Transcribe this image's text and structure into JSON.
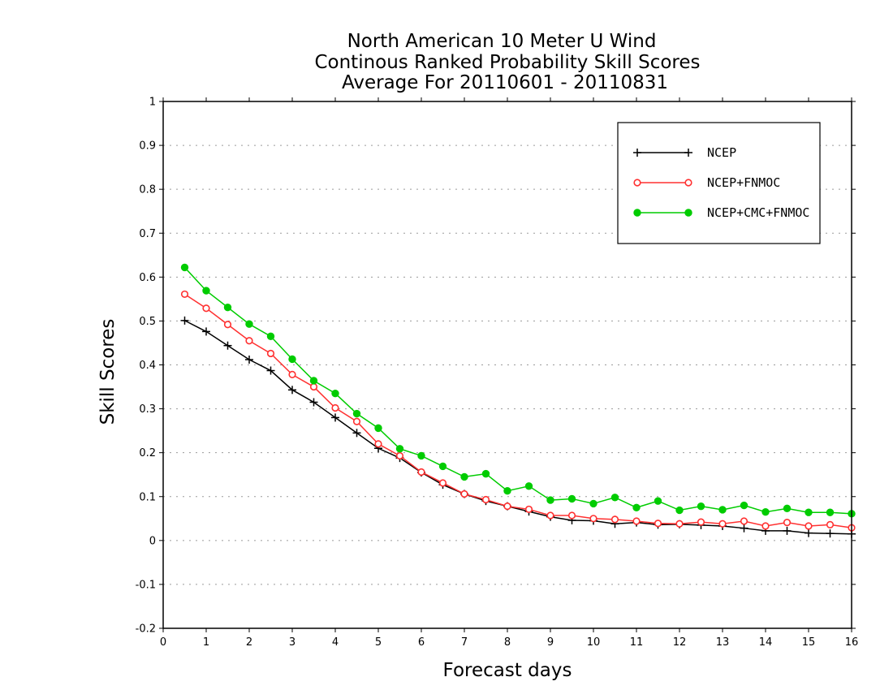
{
  "chart_data": {
    "type": "line",
    "title": [
      "North American 10 Meter U Wind",
      "Continous Ranked Probability Skill Scores",
      "Average For 20110601 - 20110831"
    ],
    "xlabel": "Forecast days",
    "ylabel": "Skill Scores",
    "xlim": [
      0,
      16
    ],
    "ylim": [
      -0.2,
      1
    ],
    "xticks": [
      0,
      1,
      2,
      3,
      4,
      5,
      6,
      7,
      8,
      9,
      10,
      11,
      12,
      13,
      14,
      15,
      16
    ],
    "xtick_labels": [
      "0",
      "1",
      "2",
      "3",
      "4",
      "5",
      "6",
      "7",
      "8",
      "9",
      "10",
      "11",
      "12",
      "13",
      "14",
      "15",
      "16"
    ],
    "yticks": [
      -0.2,
      -0.1,
      0,
      0.1,
      0.2,
      0.3,
      0.4,
      0.5,
      0.6,
      0.7,
      0.8,
      0.9,
      1
    ],
    "ytick_labels": [
      "-0.2",
      "-0.1",
      "0",
      "0.1",
      "0.2",
      "0.3",
      "0.4",
      "0.5",
      "0.6",
      "0.7",
      "0.8",
      "0.9",
      "1"
    ],
    "grid": "horizontal dotted",
    "legend_position": "top-right",
    "x": [
      0.5,
      1,
      1.5,
      2,
      2.5,
      3,
      3.5,
      4,
      4.5,
      5,
      5.5,
      6,
      6.5,
      7,
      7.5,
      8,
      8.5,
      9,
      9.5,
      10,
      10.5,
      11,
      11.5,
      12,
      12.5,
      13,
      13.5,
      14,
      14.5,
      15,
      15.5,
      16
    ],
    "series": [
      {
        "name": "NCEP",
        "color": "#000000",
        "marker": "plus",
        "values": [
          0.501,
          0.476,
          0.444,
          0.412,
          0.387,
          0.343,
          0.315,
          0.28,
          0.245,
          0.21,
          0.188,
          0.155,
          0.127,
          0.106,
          0.09,
          0.078,
          0.066,
          0.054,
          0.046,
          0.045,
          0.038,
          0.041,
          0.036,
          0.037,
          0.035,
          0.033,
          0.028,
          0.022,
          0.022,
          0.017,
          0.016,
          0.015
        ]
      },
      {
        "name": "NCEP+FNMOC",
        "color": "#ff3030",
        "marker": "open-circle",
        "values": [
          0.561,
          0.529,
          0.492,
          0.455,
          0.426,
          0.378,
          0.35,
          0.302,
          0.271,
          0.22,
          0.193,
          0.156,
          0.131,
          0.106,
          0.093,
          0.078,
          0.071,
          0.057,
          0.057,
          0.05,
          0.048,
          0.044,
          0.039,
          0.038,
          0.042,
          0.038,
          0.044,
          0.033,
          0.041,
          0.033,
          0.036,
          0.029
        ]
      },
      {
        "name": "NCEP+CMC+FNMOC",
        "color": "#00cc00",
        "marker": "filled-circle",
        "values": [
          0.622,
          0.569,
          0.531,
          0.493,
          0.465,
          0.413,
          0.364,
          0.335,
          0.289,
          0.256,
          0.209,
          0.193,
          0.169,
          0.145,
          0.152,
          0.113,
          0.124,
          0.092,
          0.095,
          0.084,
          0.098,
          0.075,
          0.09,
          0.069,
          0.078,
          0.07,
          0.08,
          0.065,
          0.073,
          0.064,
          0.064,
          0.061
        ]
      }
    ]
  }
}
